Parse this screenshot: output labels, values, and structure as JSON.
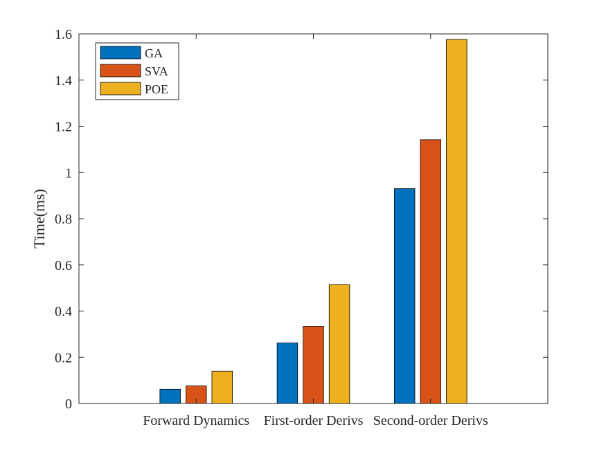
{
  "chart_data": {
    "type": "bar",
    "categories": [
      "Forward Dynamics",
      "First-order Derivs",
      "Second-order Derivs"
    ],
    "series": [
      {
        "name": "GA",
        "color": "#0072BD",
        "values": [
          0.062,
          0.262,
          0.93
        ]
      },
      {
        "name": "SVA",
        "color": "#D95319",
        "values": [
          0.076,
          0.334,
          1.142
        ]
      },
      {
        "name": "POE",
        "color": "#EDB120",
        "values": [
          0.14,
          0.514,
          1.576
        ]
      }
    ],
    "ylabel": "Time(ms)",
    "ylim": [
      0,
      1.6
    ],
    "yticks": [
      "0",
      "0.2",
      "0.4",
      "0.6",
      "0.8",
      "1",
      "1.2",
      "1.4",
      "1.6"
    ],
    "grid": false,
    "legend_position": "top-left"
  }
}
